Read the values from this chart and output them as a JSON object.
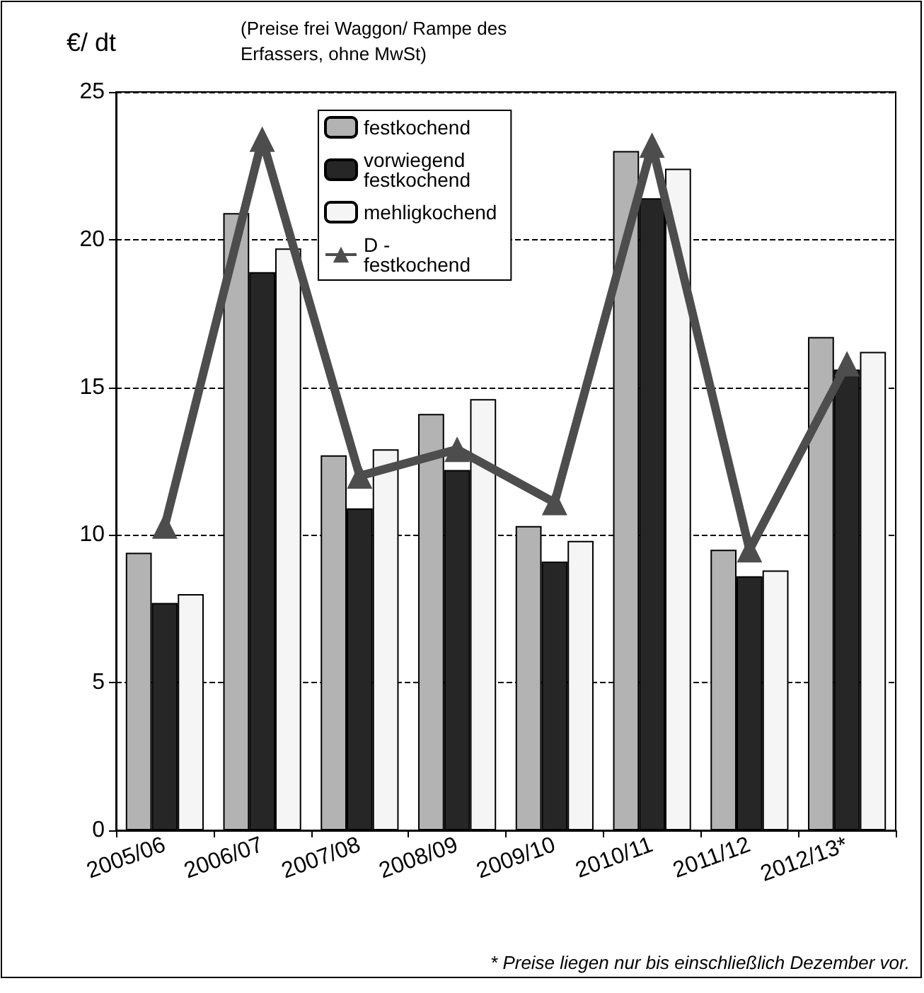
{
  "chart_data": {
    "type": "bar",
    "ylabel": "€/ dt",
    "subtitle": "(Preise frei Waggon/ Rampe des Erfassers, ohne MwSt)",
    "annotations": [
      "* Preise liegen nur bis einschließlich Dezember vor."
    ],
    "categories": [
      "2005/06",
      "2006/07",
      "2007/08",
      "2008/09",
      "2009/10",
      "2010/11",
      "2011/12",
      "2012/13*"
    ],
    "series": [
      {
        "name": "festkochend",
        "color": "#b3b3b3",
        "values": [
          9.4,
          20.9,
          12.7,
          14.1,
          10.3,
          23.0,
          9.5,
          16.7
        ]
      },
      {
        "name": "vorwiegend festkochend",
        "color": "#262626",
        "values": [
          7.7,
          18.9,
          10.9,
          12.2,
          9.1,
          21.4,
          8.6,
          15.6
        ]
      },
      {
        "name": "mehligkochend",
        "color": "#f5f5f5",
        "values": [
          8.0,
          19.7,
          12.9,
          14.6,
          9.8,
          22.4,
          8.8,
          16.2
        ]
      },
      {
        "name": "D - festkochend",
        "type": "line",
        "color": "#4d4d4d",
        "marker": "triangle",
        "values": [
          10.3,
          23.4,
          12.0,
          12.9,
          11.1,
          23.2,
          9.5,
          15.8
        ]
      }
    ],
    "ylim": [
      0,
      25
    ],
    "yticks": [
      0,
      5,
      10,
      15,
      20,
      25
    ],
    "grid": "y",
    "legend": "top"
  }
}
